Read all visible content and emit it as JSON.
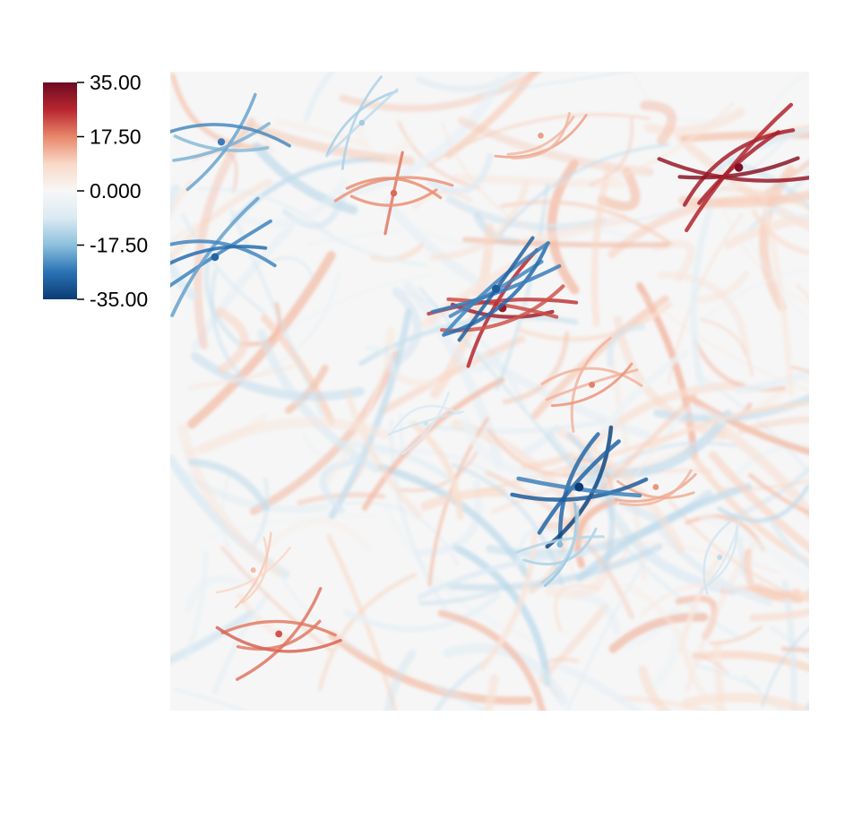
{
  "chart_data": {
    "type": "heatmap",
    "title": "",
    "xlabel": "",
    "ylabel": "",
    "colormap": {
      "name": "diverging red-white-blue",
      "range": [
        -35,
        35
      ],
      "stops": [
        "#0b3b74",
        "#2a72b4",
        "#8cc0dd",
        "#dbeaf3",
        "#f7f7f7",
        "#f9d9c7",
        "#e8876b",
        "#b8262f",
        "#6c0a22"
      ]
    },
    "colorbar": {
      "placement": "top-left",
      "ticks": [
        {
          "value": 35,
          "label": "35.00"
        },
        {
          "value": 17.5,
          "label": "17.50"
        },
        {
          "value": 0,
          "label": "0.000"
        },
        {
          "value": -17.5,
          "label": "-17.50"
        },
        {
          "value": -35,
          "label": "-35.00"
        }
      ]
    },
    "field_features": [
      {
        "sign": "positive",
        "value": 33,
        "u": 0.89,
        "v": 0.15
      },
      {
        "sign": "positive",
        "value": 30,
        "u": 0.52,
        "v": 0.37
      },
      {
        "sign": "positive",
        "value": 22,
        "u": 0.17,
        "v": 0.88
      },
      {
        "sign": "positive",
        "value": 20,
        "u": 0.35,
        "v": 0.19
      },
      {
        "sign": "positive",
        "value": 18,
        "u": 0.66,
        "v": 0.49
      },
      {
        "sign": "positive",
        "value": 16,
        "u": 0.76,
        "v": 0.65
      },
      {
        "sign": "positive",
        "value": 15,
        "u": 0.58,
        "v": 0.1
      },
      {
        "sign": "positive",
        "value": 12,
        "u": 0.13,
        "v": 0.78
      },
      {
        "sign": "negative",
        "value": -35,
        "u": 0.64,
        "v": 0.65
      },
      {
        "sign": "negative",
        "value": -30,
        "u": 0.51,
        "v": 0.34
      },
      {
        "sign": "negative",
        "value": -28,
        "u": 0.07,
        "v": 0.29
      },
      {
        "sign": "negative",
        "value": -25,
        "u": 0.08,
        "v": 0.11
      },
      {
        "sign": "negative",
        "value": -18,
        "u": 0.61,
        "v": 0.74
      },
      {
        "sign": "negative",
        "value": -15,
        "u": 0.3,
        "v": 0.08
      },
      {
        "sign": "negative",
        "value": -12,
        "u": 0.86,
        "v": 0.76
      },
      {
        "sign": "negative",
        "value": -10,
        "u": 0.4,
        "v": 0.55
      }
    ]
  }
}
